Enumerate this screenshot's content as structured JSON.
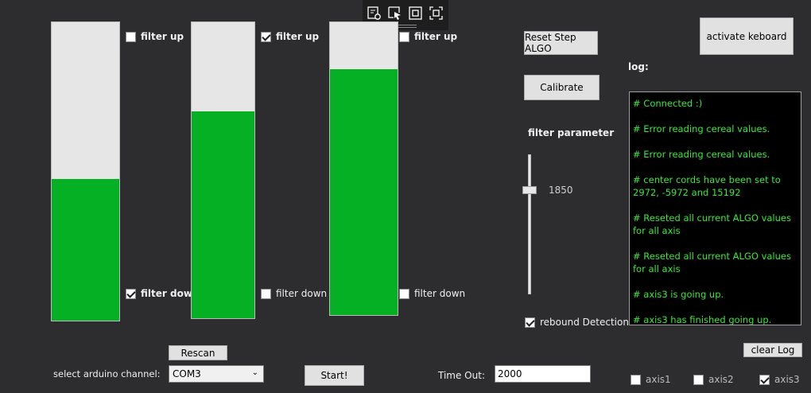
{
  "bars": [
    {
      "fill_fraction": 0.475,
      "filter_up_checked": false,
      "filter_down_checked": true
    },
    {
      "fill_fraction": 0.7,
      "filter_up_checked": true,
      "filter_down_checked": false
    },
    {
      "fill_fraction": 0.84,
      "filter_up_checked": false,
      "filter_down_checked": false
    }
  ],
  "labels": {
    "filter_up": "filter up",
    "filter_down": "filter down",
    "filter_parameter": "filter parameter",
    "log": "log:",
    "select_channel": "select arduino channel:",
    "timeout": "Time Out:"
  },
  "buttons": {
    "reset": "Reset Step ALGO",
    "calibrate": "Calibrate",
    "activate_keyboard": "activate keboard",
    "rescan": "Rescan",
    "start": "Start!",
    "clear_log": "clear Log"
  },
  "slider": {
    "value": "1850"
  },
  "rebound": {
    "label": "rebound Detection",
    "checked": true
  },
  "log_lines": [
    "# Connected :)",
    "# Error reading cereal values.",
    "# Error reading cereal values.",
    "# center cords have been set to 2972, -5972  and  15192",
    "# Reseted all current ALGO values for all axis",
    "# Reseted all current ALGO values for all axis",
    "# axis3 is going up.",
    "# axis3 has finished going up."
  ],
  "channel": {
    "value": "COM3"
  },
  "timeout_value": "2000",
  "axes": [
    {
      "label": "axis1",
      "checked": false
    },
    {
      "label": "axis2",
      "checked": false
    },
    {
      "label": "axis3",
      "checked": true
    }
  ],
  "toolbar_icons": [
    "live-visual-tree-icon",
    "select-element-icon",
    "display-layout-adorners-icon",
    "track-focus-icon"
  ],
  "colors": {
    "background": "#2d2d30",
    "bar_fill": "#06b025",
    "log_text": "#3ce63c"
  }
}
